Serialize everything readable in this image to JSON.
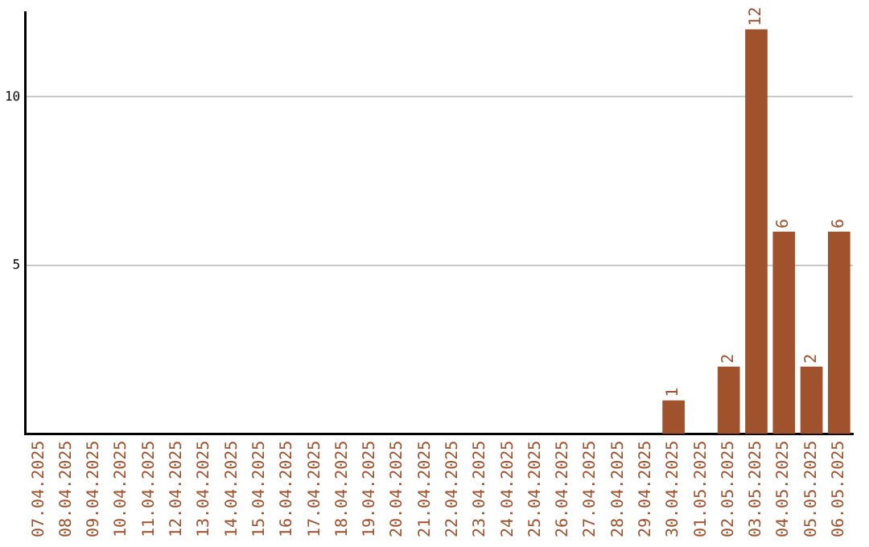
{
  "chart_data": {
    "type": "bar",
    "categories": [
      "07.04.2025",
      "08.04.2025",
      "09.04.2025",
      "10.04.2025",
      "11.04.2025",
      "12.04.2025",
      "13.04.2025",
      "14.04.2025",
      "15.04.2025",
      "16.04.2025",
      "17.04.2025",
      "18.04.2025",
      "19.04.2025",
      "20.04.2025",
      "21.04.2025",
      "22.04.2025",
      "23.04.2025",
      "24.04.2025",
      "25.04.2025",
      "26.04.2025",
      "27.04.2025",
      "28.04.2025",
      "29.04.2025",
      "30.04.2025",
      "01.05.2025",
      "02.05.2025",
      "03.05.2025",
      "04.05.2025",
      "05.05.2025",
      "06.05.2025"
    ],
    "values": [
      0,
      0,
      0,
      0,
      0,
      0,
      0,
      0,
      0,
      0,
      0,
      0,
      0,
      0,
      0,
      0,
      0,
      0,
      0,
      0,
      0,
      0,
      0,
      1,
      0,
      2,
      12,
      6,
      2,
      6
    ],
    "value_labels": [
      null,
      null,
      null,
      null,
      null,
      null,
      null,
      null,
      null,
      null,
      null,
      null,
      null,
      null,
      null,
      null,
      null,
      null,
      null,
      null,
      null,
      null,
      null,
      "1",
      null,
      "2",
      "12",
      "6",
      "2",
      "6"
    ],
    "color": "#a0522d",
    "ylim": [
      0,
      12.5
    ],
    "yticks": [
      5,
      10
    ],
    "grid": "y",
    "legend": false
  }
}
